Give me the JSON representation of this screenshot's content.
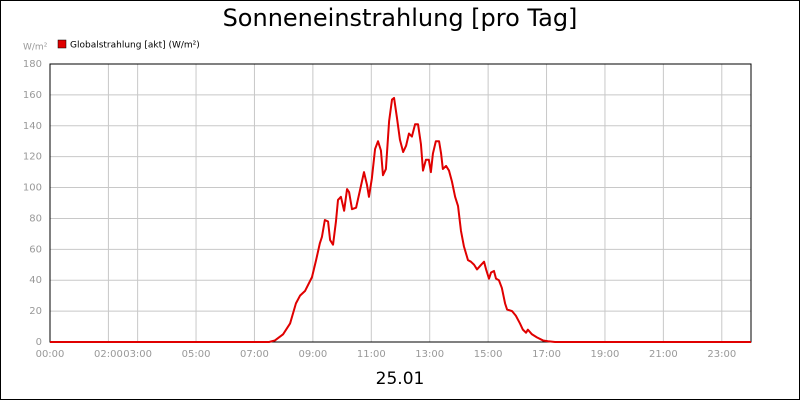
{
  "chart_data": {
    "type": "line",
    "title": "Sonneneinstrahlung [pro Tag]",
    "y_label": "W/m²",
    "x_label": "25.01",
    "x": [
      0,
      7.5,
      7.7,
      7.98,
      8.22,
      8.42,
      8.56,
      8.73,
      8.97,
      9.11,
      9.24,
      9.31,
      9.41,
      9.52,
      9.59,
      9.69,
      9.79,
      9.86,
      9.96,
      10.07,
      10.17,
      10.24,
      10.34,
      10.48,
      10.61,
      10.75,
      10.85,
      10.92,
      11.02,
      11.13,
      11.23,
      11.33,
      11.4,
      11.5,
      11.61,
      11.71,
      11.78,
      11.88,
      11.98,
      12.09,
      12.19,
      12.29,
      12.39,
      12.5,
      12.6,
      12.7,
      12.77,
      12.87,
      12.97,
      13.04,
      13.11,
      13.21,
      13.32,
      13.39,
      13.45,
      13.56,
      13.66,
      13.76,
      13.87,
      13.97,
      14.07,
      14.17,
      14.31,
      14.41,
      14.52,
      14.62,
      14.76,
      14.86,
      14.93,
      15.03,
      15.1,
      15.2,
      15.27,
      15.37,
      15.47,
      15.58,
      15.65,
      15.82,
      15.95,
      16.09,
      16.19,
      16.3,
      16.36,
      16.5,
      16.67,
      16.88,
      17.05,
      17.29,
      24
    ],
    "series": [
      {
        "name": "Globalstrahlung [akt] (W/m²)",
        "color": "#e00000",
        "values": [
          0,
          0,
          1,
          5,
          12,
          25,
          30,
          33,
          42,
          53,
          64,
          68,
          79,
          78,
          66,
          63,
          78,
          92,
          94,
          85,
          99,
          97,
          86,
          87,
          98,
          110,
          102,
          94,
          106,
          125,
          130,
          124,
          108,
          112,
          143,
          157,
          158,
          145,
          131,
          123,
          127,
          135,
          133,
          141,
          141,
          128,
          111,
          118,
          118,
          110,
          122,
          130,
          130,
          122,
          112,
          114,
          111,
          104,
          94,
          88,
          72,
          62,
          53,
          52,
          50,
          47,
          50,
          52,
          47,
          41,
          45,
          46,
          41,
          40,
          35,
          25,
          21,
          20,
          17,
          12,
          8,
          6,
          8,
          5,
          3,
          1,
          0.5,
          0,
          0
        ]
      }
    ],
    "xlim": [
      0,
      24
    ],
    "xticks": [
      {
        "value": 0,
        "label": "00:00"
      },
      {
        "value": 2,
        "label": "02:00"
      },
      {
        "value": 3,
        "label": "03:00"
      },
      {
        "value": 5,
        "label": "05:00"
      },
      {
        "value": 7,
        "label": "07:00"
      },
      {
        "value": 9,
        "label": "09:00"
      },
      {
        "value": 11,
        "label": "11:00"
      },
      {
        "value": 13,
        "label": "13:00"
      },
      {
        "value": 15,
        "label": "15:00"
      },
      {
        "value": 17,
        "label": "17:00"
      },
      {
        "value": 19,
        "label": "19:00"
      },
      {
        "value": 21,
        "label": "21:00"
      },
      {
        "value": 23,
        "label": "23:00"
      }
    ],
    "ylim": [
      0,
      180
    ],
    "yticks": [
      0,
      20,
      40,
      60,
      80,
      100,
      120,
      140,
      160,
      180
    ],
    "grid": true
  }
}
